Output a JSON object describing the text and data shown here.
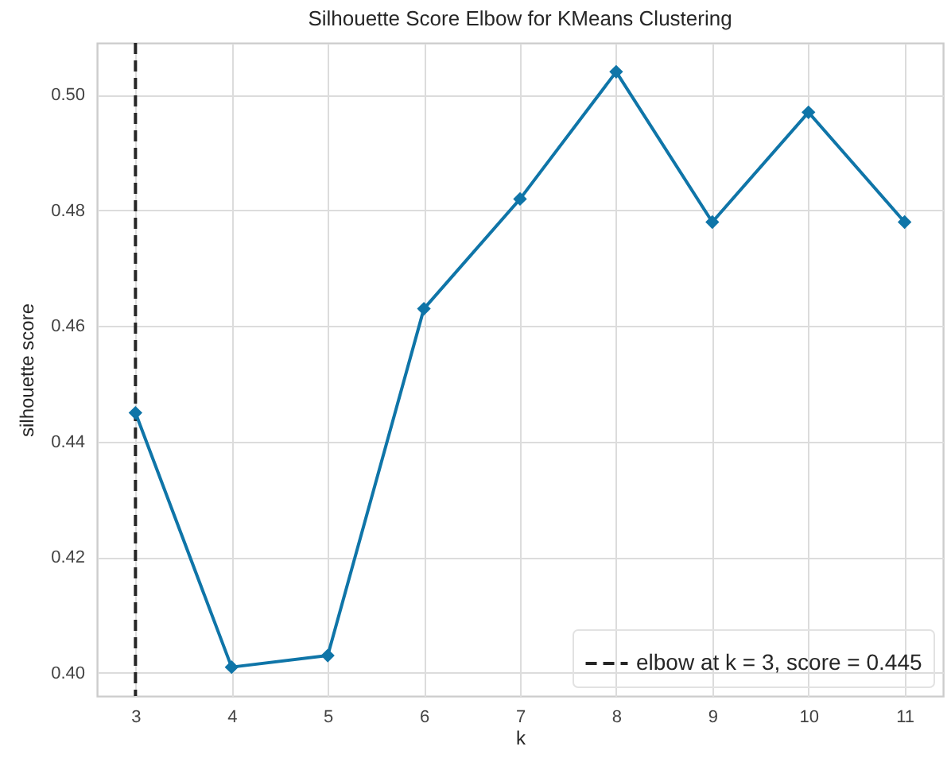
{
  "chart_data": {
    "type": "line",
    "title": "Silhouette Score Elbow for KMeans Clustering",
    "xlabel": "k",
    "ylabel": "silhouette score",
    "x": [
      3,
      4,
      5,
      6,
      7,
      8,
      9,
      10,
      11
    ],
    "values": [
      0.445,
      0.401,
      0.403,
      0.463,
      0.482,
      0.504,
      0.478,
      0.497,
      0.478
    ],
    "color": "#0f75a8",
    "xlim": [
      2.6,
      11.4
    ],
    "ylim": [
      0.396,
      0.509
    ],
    "xticks": [
      3,
      4,
      5,
      6,
      7,
      8,
      9,
      10,
      11
    ],
    "yticks": [
      {
        "value": 0.4,
        "label": "0.40"
      },
      {
        "value": 0.42,
        "label": "0.42"
      },
      {
        "value": 0.44,
        "label": "0.44"
      },
      {
        "value": 0.46,
        "label": "0.46"
      },
      {
        "value": 0.48,
        "label": "0.48"
      },
      {
        "value": 0.5,
        "label": "0.50"
      }
    ],
    "ref_lines": [
      {
        "axis": "x",
        "value": 3,
        "label": "elbow at k = 3, score = 0.445",
        "color": "#262626",
        "line_style": "dashed"
      }
    ],
    "grid": true,
    "legend": "bottom right",
    "marker": "diamond",
    "line_style": "solid"
  }
}
